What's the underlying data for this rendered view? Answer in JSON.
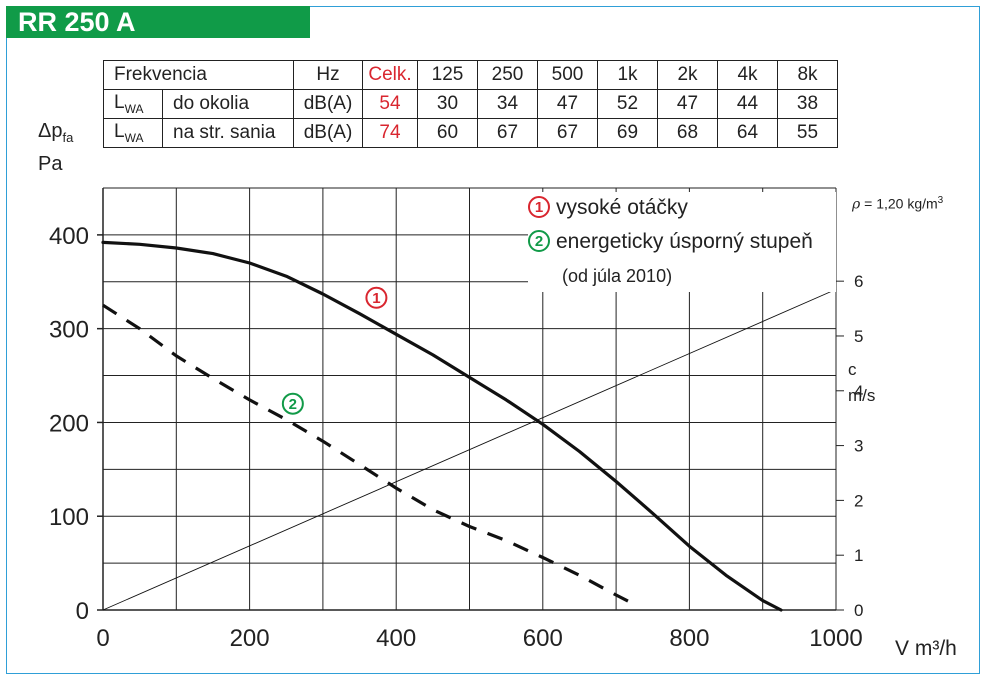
{
  "title": "RR 250 A",
  "table": {
    "header": [
      "Frekvencia",
      "Hz",
      "Celk.",
      "125",
      "250",
      "500",
      "1k",
      "2k",
      "4k",
      "8k"
    ],
    "rows": [
      {
        "symbol": "L",
        "symbol_sub": "WA",
        "label": "do okolia",
        "unit": "dB(A)",
        "total": "54",
        "values": [
          "30",
          "34",
          "47",
          "52",
          "47",
          "44",
          "38"
        ]
      },
      {
        "symbol": "L",
        "symbol_sub": "WA",
        "label": "na str. sania",
        "unit": "dB(A)",
        "total": "74",
        "values": [
          "60",
          "67",
          "67",
          "69",
          "68",
          "64",
          "55"
        ]
      }
    ]
  },
  "legend": {
    "item1_num": "1",
    "item1": "vysoké otáčky",
    "item2_num": "2",
    "item2": "energeticky úsporný stupeň",
    "item2_note": "(od júla 2010)"
  },
  "density": "= 1,20 kg/m",
  "density_symbol": "ρ",
  "density_exp": "3",
  "colors": {
    "brand": "#109b48",
    "frame": "#2f9fd7",
    "red": "#d9262f",
    "green": "#119a48"
  },
  "chart_data": {
    "type": "line",
    "ylabel": "Δp",
    "ylabel_sub": "fa",
    "yunit": "Pa",
    "xunit": "V m³/h",
    "y2label": "c",
    "y2unit": "m/s",
    "xlim": [
      0,
      1000
    ],
    "ylim": [
      0,
      450
    ],
    "x_ticks": [
      0,
      200,
      400,
      600,
      800,
      1000
    ],
    "y_ticks": [
      0,
      100,
      200,
      300,
      400
    ],
    "y2_ticks": [
      0,
      1,
      2,
      3,
      4,
      5,
      6
    ],
    "y2_range": [
      0,
      7.7
    ],
    "grid": true,
    "series": [
      {
        "name": "1",
        "style": "solid",
        "x": [
          0,
          50,
          100,
          150,
          200,
          250,
          300,
          350,
          400,
          450,
          500,
          550,
          600,
          650,
          700,
          750,
          800,
          850,
          900,
          925
        ],
        "y": [
          392,
          390,
          386,
          380,
          370,
          356,
          337,
          316,
          294,
          272,
          248,
          224,
          198,
          169,
          137,
          103,
          68,
          37,
          10,
          0
        ]
      },
      {
        "name": "2",
        "style": "dashed",
        "x": [
          0,
          50,
          100,
          150,
          200,
          250,
          300,
          350,
          400,
          450,
          500,
          550,
          600,
          650,
          700,
          725
        ],
        "y": [
          325,
          300,
          271,
          247,
          224,
          203,
          180,
          155,
          130,
          107,
          89,
          74,
          56,
          37,
          16,
          6
        ]
      },
      {
        "name": "c",
        "style": "thin",
        "axis": "y2",
        "x": [
          0,
          1000
        ],
        "y": [
          0,
          5.85
        ]
      }
    ]
  }
}
